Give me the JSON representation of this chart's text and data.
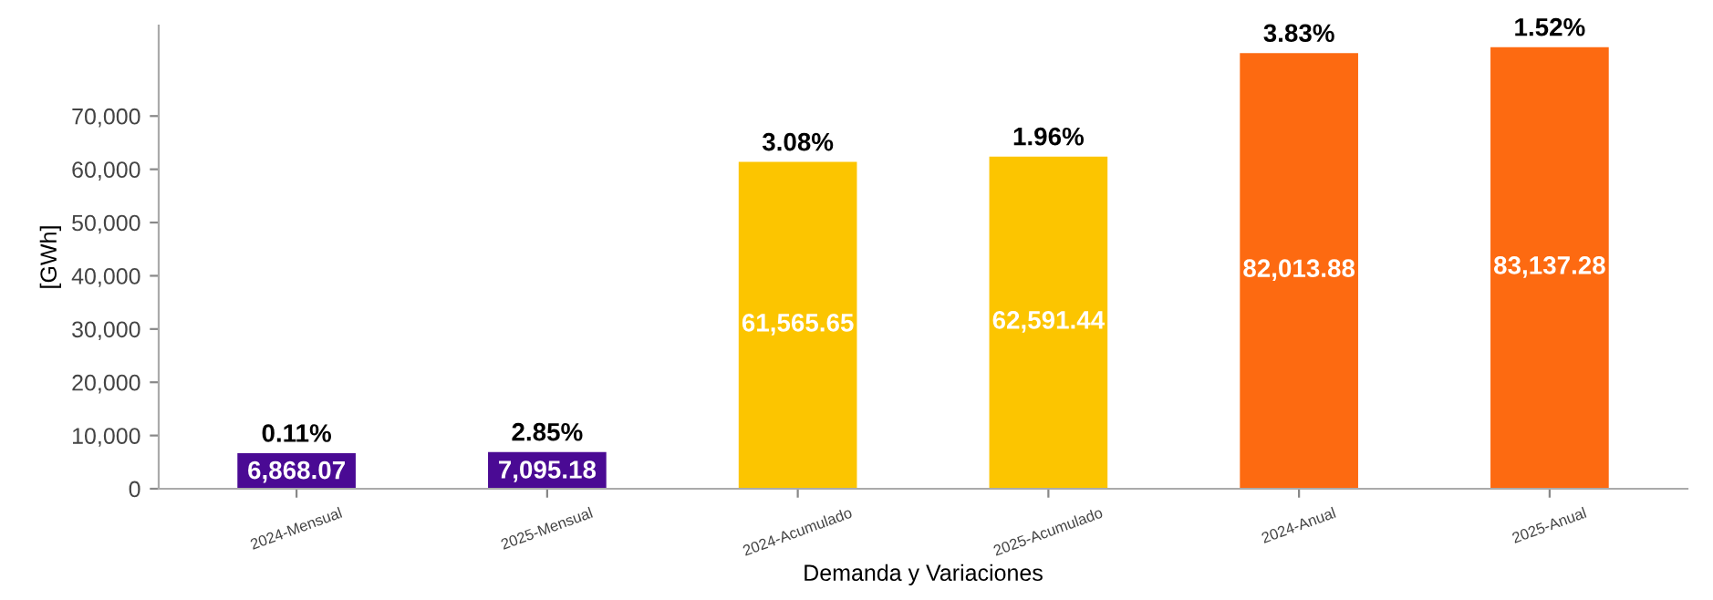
{
  "chart_data": {
    "type": "bar",
    "categories": [
      "2024-Mensual",
      "2025-Mensual",
      "2024-Acumulado",
      "2025-Acumulado",
      "2024-Anual",
      "2025-Anual"
    ],
    "values": [
      6868.07,
      7095.18,
      61565.65,
      62591.44,
      82013.88,
      83137.28
    ],
    "colors": [
      "#4a0a94",
      "#4a0a94",
      "#fcc500",
      "#fcc500",
      "#fd6a11",
      "#fd6a11"
    ],
    "value_labels": [
      "6,868.07",
      "7,095.18",
      "61,565.65",
      "62,591.44",
      "82,013.88",
      "83,137.28"
    ],
    "annotations": [
      {
        "text": "0.11%",
        "x": "2024-Mensual",
        "y": 6868.07
      },
      {
        "text": "2.85%",
        "x": "2025-Mensual",
        "y": 7095.18
      },
      {
        "text": "3.08%",
        "x": "2024-Acumulado",
        "y": 61565.65
      },
      {
        "text": "1.96%",
        "x": "2025-Acumulado",
        "y": 62591.44
      },
      {
        "text": "3.83%",
        "x": "2024-Anual",
        "y": 82013.88
      },
      {
        "text": "1.52%",
        "x": "2025-Anual",
        "y": 83137.28
      }
    ],
    "xlabel": "Demanda y Variaciones",
    "ylabel": "[GWh]",
    "ylim": [
      0,
      87000
    ],
    "yticks": [
      {
        "value": 0,
        "label": "0"
      },
      {
        "value": 10000,
        "label": "10,000"
      },
      {
        "value": 20000,
        "label": "20,000"
      },
      {
        "value": 30000,
        "label": "30,000"
      },
      {
        "value": 40000,
        "label": "40,000"
      },
      {
        "value": 50000,
        "label": "50,000"
      },
      {
        "value": 60000,
        "label": "60,000"
      },
      {
        "value": 70000,
        "label": "70,000"
      }
    ],
    "grid": false,
    "legend": false
  }
}
